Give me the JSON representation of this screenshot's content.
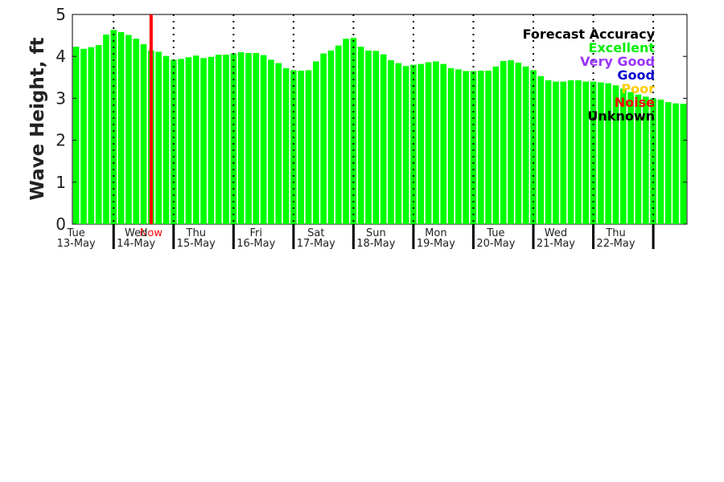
{
  "chart_data": {
    "type": "bar",
    "ylabel": "Wave Height, ft",
    "ylim": [
      0,
      5
    ],
    "yticks": [
      "0",
      "1",
      "2",
      "3",
      "4",
      "5"
    ],
    "bar_color": "#00ff00",
    "days": [
      {
        "weekday": "Tue",
        "date": "13-May"
      },
      {
        "weekday": "Wed",
        "date": "14-May"
      },
      {
        "weekday": "Thu",
        "date": "15-May"
      },
      {
        "weekday": "Fri",
        "date": "16-May"
      },
      {
        "weekday": "Sat",
        "date": "17-May"
      },
      {
        "weekday": "Sun",
        "date": "18-May"
      },
      {
        "weekday": "Mon",
        "date": "19-May"
      },
      {
        "weekday": "Tue",
        "date": "20-May"
      },
      {
        "weekday": "Wed",
        "date": "21-May"
      },
      {
        "weekday": "Thu",
        "date": "22-May"
      }
    ],
    "values": [
      4.23,
      4.18,
      4.22,
      4.27,
      4.52,
      4.63,
      4.58,
      4.51,
      4.42,
      4.29,
      4.14,
      4.11,
      4.01,
      3.92,
      3.94,
      3.98,
      4.02,
      3.96,
      3.99,
      4.04,
      4.04,
      4.07,
      4.1,
      4.08,
      4.08,
      4.03,
      3.92,
      3.84,
      3.72,
      3.67,
      3.66,
      3.67,
      3.88,
      4.07,
      4.14,
      4.26,
      4.42,
      4.44,
      4.23,
      4.14,
      4.13,
      4.05,
      3.91,
      3.84,
      3.77,
      3.8,
      3.82,
      3.86,
      3.88,
      3.82,
      3.72,
      3.69,
      3.65,
      3.65,
      3.66,
      3.66,
      3.76,
      3.89,
      3.91,
      3.85,
      3.76,
      3.67,
      3.53,
      3.43,
      3.4,
      3.4,
      3.43,
      3.43,
      3.4,
      3.4,
      3.38,
      3.36,
      3.31,
      3.23,
      3.15,
      3.09,
      3.04,
      3.0,
      2.97,
      2.91,
      2.88,
      2.87
    ],
    "now_marker": {
      "label": "Now",
      "color": "#ff0000",
      "bar_index": 10.5
    },
    "legend": {
      "title": "Forecast Accuracy",
      "title_color": "#000000",
      "placement": "top-right",
      "entries": [
        {
          "label": "Excellent",
          "color": "#00ee00"
        },
        {
          "label": "Very Good",
          "color": "#9933ff"
        },
        {
          "label": "Good",
          "color": "#0000cc"
        },
        {
          "label": "Poor",
          "color": "#ffcc00"
        },
        {
          "label": "Noise",
          "color": "#ff0000"
        },
        {
          "label": "Unknown",
          "color": "#000000"
        }
      ]
    }
  }
}
